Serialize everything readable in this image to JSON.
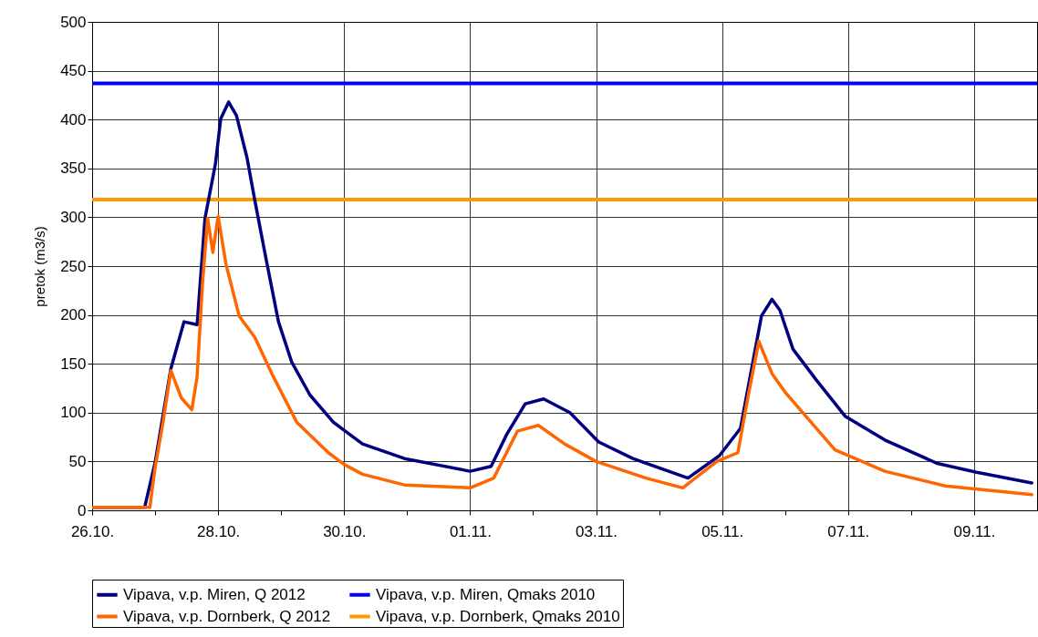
{
  "chart_data": {
    "type": "line",
    "ylabel": "pretok (m3/s)",
    "ylim": [
      0,
      500
    ],
    "yticks": [
      0,
      50,
      100,
      150,
      200,
      250,
      300,
      350,
      400,
      450,
      500
    ],
    "xlim": [
      "2012-10-26",
      "2012-11-10"
    ],
    "xticks": [
      {
        "value": "2012-10-26",
        "label": "26.10."
      },
      {
        "value": "2012-10-27",
        "label": null
      },
      {
        "value": "2012-10-28",
        "label": "28.10."
      },
      {
        "value": "2012-10-29",
        "label": null
      },
      {
        "value": "2012-10-30",
        "label": "30.10."
      },
      {
        "value": "2012-10-31",
        "label": null
      },
      {
        "value": "2012-11-01",
        "label": "01.11."
      },
      {
        "value": "2012-11-02",
        "label": null
      },
      {
        "value": "2012-11-03",
        "label": "03.11."
      },
      {
        "value": "2012-11-04",
        "label": null
      },
      {
        "value": "2012-11-05",
        "label": "05.11."
      },
      {
        "value": "2012-11-06",
        "label": null
      },
      {
        "value": "2012-11-07",
        "label": "07.11."
      },
      {
        "value": "2012-11-08",
        "label": null
      },
      {
        "value": "2012-11-09",
        "label": "09.11."
      }
    ],
    "grid": true,
    "legend": "bottom",
    "series": [
      {
        "name": "Vipava, v.p. Miren, Q 2012",
        "color": "#000080",
        "x": [
          "2012-10-26T00:00",
          "2012-10-26T20:00",
          "2012-10-27T00:00",
          "2012-10-27T06:00",
          "2012-10-27T11:00",
          "2012-10-27T16:00",
          "2012-10-27T19:00",
          "2012-10-27T23:00",
          "2012-10-28T01:00",
          "2012-10-28T04:00",
          "2012-10-28T07:00",
          "2012-10-28T11:00",
          "2012-10-28T14:00",
          "2012-10-28T18:00",
          "2012-10-28T23:00",
          "2012-10-29T04:00",
          "2012-10-29T11:00",
          "2012-10-29T20:00",
          "2012-10-30T00:00",
          "2012-10-30T07:00",
          "2012-10-30T23:00",
          "2012-11-01T00:00",
          "2012-11-01T08:00",
          "2012-11-01T14:00",
          "2012-11-01T21:00",
          "2012-11-02T04:00",
          "2012-11-02T14:00",
          "2012-11-03T01:00",
          "2012-11-03T14:00",
          "2012-11-04T11:00",
          "2012-11-04T23:00",
          "2012-11-05T07:00",
          "2012-11-05T15:00",
          "2012-11-05T19:00",
          "2012-11-05T22:00",
          "2012-11-06T03:00",
          "2012-11-06T12:00",
          "2012-11-06T23:00",
          "2012-11-07T14:00",
          "2012-11-08T10:00",
          "2012-11-09T01:00",
          "2012-11-09T22:00"
        ],
        "values": [
          3,
          3,
          49,
          145,
          193,
          190,
          299,
          355,
          401,
          418,
          404,
          361,
          317,
          261,
          193,
          152,
          118,
          90,
          82,
          68,
          53,
          40,
          45,
          78,
          109,
          114,
          100,
          70,
          53,
          33,
          56,
          84,
          199,
          216,
          205,
          165,
          133,
          96,
          72,
          48,
          39,
          28
        ]
      },
      {
        "name": "Vipava, v.p. Dornberk, Q 2012",
        "color": "#ff6600",
        "x": [
          "2012-10-26T00:00",
          "2012-10-26T22:00",
          "2012-10-27T00:00",
          "2012-10-27T03:00",
          "2012-10-27T06:00",
          "2012-10-27T10:00",
          "2012-10-27T14:00",
          "2012-10-27T16:00",
          "2012-10-27T18:00",
          "2012-10-27T20:00",
          "2012-10-27T22:00",
          "2012-10-28T00:00",
          "2012-10-28T03:00",
          "2012-10-28T08:00",
          "2012-10-28T14:00",
          "2012-10-28T21:00",
          "2012-10-29T06:00",
          "2012-10-29T18:00",
          "2012-10-30T00:00",
          "2012-10-30T07:00",
          "2012-10-30T23:00",
          "2012-11-01T00:00",
          "2012-11-01T09:00",
          "2012-11-01T18:00",
          "2012-11-02T02:00",
          "2012-11-02T12:00",
          "2012-11-03T00:00",
          "2012-11-03T19:00",
          "2012-11-04T09:00",
          "2012-11-04T22:00",
          "2012-11-05T06:00",
          "2012-11-05T10:00",
          "2012-11-05T14:00",
          "2012-11-05T19:00",
          "2012-11-06T00:00",
          "2012-11-06T19:00",
          "2012-11-07T14:00",
          "2012-11-08T13:00",
          "2012-11-09T22:00"
        ],
        "values": [
          3,
          3,
          44,
          90,
          143,
          115,
          103,
          137,
          230,
          299,
          264,
          301,
          252,
          199,
          177,
          137,
          90,
          59,
          47,
          37,
          26,
          23,
          33,
          81,
          87,
          68,
          50,
          33,
          23,
          50,
          59,
          118,
          173,
          140,
          121,
          62,
          40,
          25,
          16
        ]
      }
    ],
    "ref_lines": [
      {
        "axis": "y",
        "value": 437,
        "label": "Vipava, v.p. Miren, Qmaks 2010",
        "color": "#0000ff"
      },
      {
        "axis": "y",
        "value": 318,
        "label": "Vipava, v.p. Dornberk, Qmaks 2010",
        "color": "#ff9900"
      }
    ]
  }
}
